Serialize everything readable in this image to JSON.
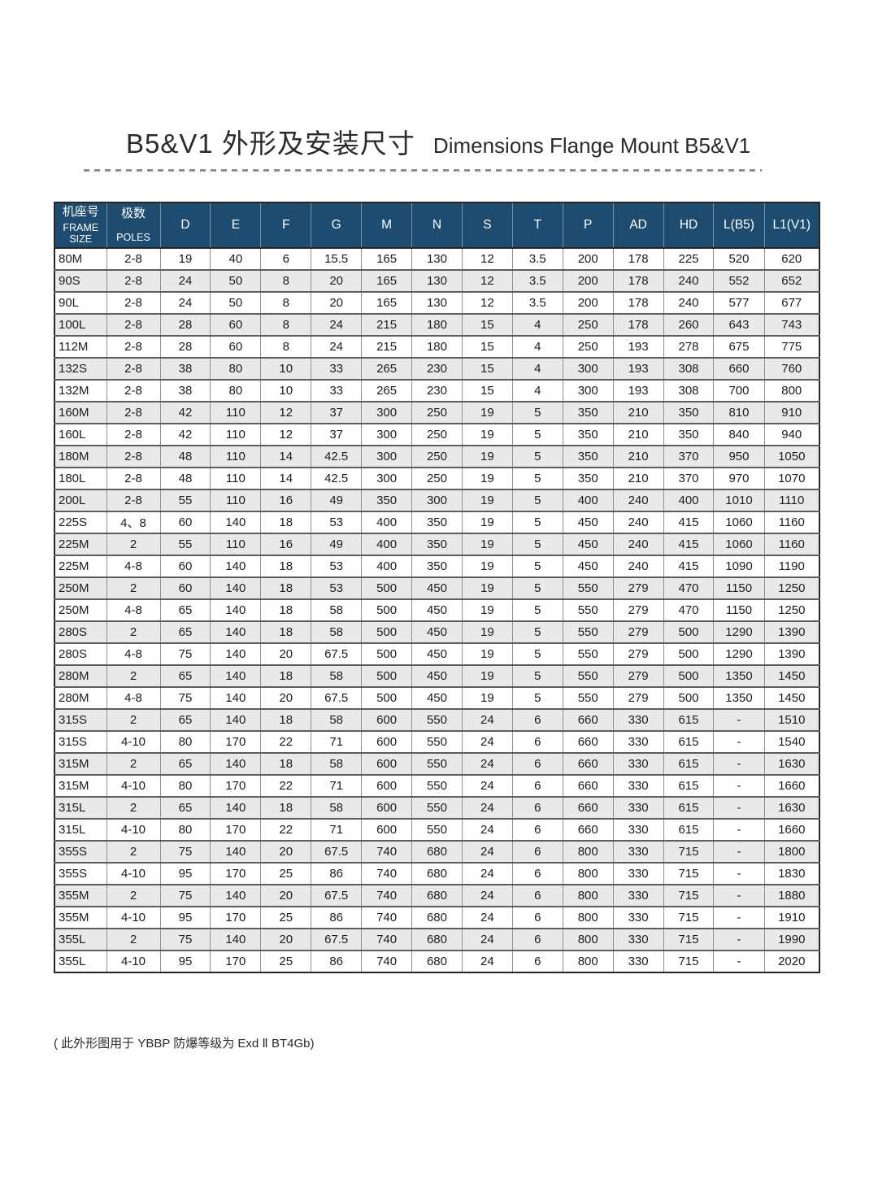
{
  "page": {
    "title_zh": "B5&V1 外形及安装尺寸",
    "title_en": "Dimensions Flange Mount B5&V1",
    "footnote": "( 此外形图用于 YBBP 防爆等级为 Exd Ⅱ BT4Gb)"
  },
  "colors": {
    "header_bg": "#1d4c70",
    "header_text": "#ffffff",
    "row_alt_bg": "#e9e9e9",
    "grid_vertical": "#8f8f8f",
    "grid_horizontal": "#5d5d5d",
    "outer_border": "#262626",
    "text": "#1c1c1c"
  },
  "table": {
    "columns": [
      {
        "zh": "机座号",
        "en": "FRAME SIZE"
      },
      {
        "zh": "极数",
        "en": "POLES"
      },
      {
        "label": "D"
      },
      {
        "label": "E"
      },
      {
        "label": "F"
      },
      {
        "label": "G"
      },
      {
        "label": "M"
      },
      {
        "label": "N"
      },
      {
        "label": "S"
      },
      {
        "label": "T"
      },
      {
        "label": "P"
      },
      {
        "label": "AD"
      },
      {
        "label": "HD"
      },
      {
        "label": "L(B5)"
      },
      {
        "label": "L1(V1)"
      }
    ],
    "rows": [
      [
        "80M",
        "2-8",
        "19",
        "40",
        "6",
        "15.5",
        "165",
        "130",
        "12",
        "3.5",
        "200",
        "178",
        "225",
        "520",
        "620"
      ],
      [
        "90S",
        "2-8",
        "24",
        "50",
        "8",
        "20",
        "165",
        "130",
        "12",
        "3.5",
        "200",
        "178",
        "240",
        "552",
        "652"
      ],
      [
        "90L",
        "2-8",
        "24",
        "50",
        "8",
        "20",
        "165",
        "130",
        "12",
        "3.5",
        "200",
        "178",
        "240",
        "577",
        "677"
      ],
      [
        "100L",
        "2-8",
        "28",
        "60",
        "8",
        "24",
        "215",
        "180",
        "15",
        "4",
        "250",
        "178",
        "260",
        "643",
        "743"
      ],
      [
        "112M",
        "2-8",
        "28",
        "60",
        "8",
        "24",
        "215",
        "180",
        "15",
        "4",
        "250",
        "193",
        "278",
        "675",
        "775"
      ],
      [
        "132S",
        "2-8",
        "38",
        "80",
        "10",
        "33",
        "265",
        "230",
        "15",
        "4",
        "300",
        "193",
        "308",
        "660",
        "760"
      ],
      [
        "132M",
        "2-8",
        "38",
        "80",
        "10",
        "33",
        "265",
        "230",
        "15",
        "4",
        "300",
        "193",
        "308",
        "700",
        "800"
      ],
      [
        "160M",
        "2-8",
        "42",
        "110",
        "12",
        "37",
        "300",
        "250",
        "19",
        "5",
        "350",
        "210",
        "350",
        "810",
        "910"
      ],
      [
        "160L",
        "2-8",
        "42",
        "110",
        "12",
        "37",
        "300",
        "250",
        "19",
        "5",
        "350",
        "210",
        "350",
        "840",
        "940"
      ],
      [
        "180M",
        "2-8",
        "48",
        "110",
        "14",
        "42.5",
        "300",
        "250",
        "19",
        "5",
        "350",
        "210",
        "370",
        "950",
        "1050"
      ],
      [
        "180L",
        "2-8",
        "48",
        "110",
        "14",
        "42.5",
        "300",
        "250",
        "19",
        "5",
        "350",
        "210",
        "370",
        "970",
        "1070"
      ],
      [
        "200L",
        "2-8",
        "55",
        "110",
        "16",
        "49",
        "350",
        "300",
        "19",
        "5",
        "400",
        "240",
        "400",
        "1010",
        "1110"
      ],
      [
        "225S",
        "4、8",
        "60",
        "140",
        "18",
        "53",
        "400",
        "350",
        "19",
        "5",
        "450",
        "240",
        "415",
        "1060",
        "1160"
      ],
      [
        "225M",
        "2",
        "55",
        "110",
        "16",
        "49",
        "400",
        "350",
        "19",
        "5",
        "450",
        "240",
        "415",
        "1060",
        "1160"
      ],
      [
        "225M",
        "4-8",
        "60",
        "140",
        "18",
        "53",
        "400",
        "350",
        "19",
        "5",
        "450",
        "240",
        "415",
        "1090",
        "1190"
      ],
      [
        "250M",
        "2",
        "60",
        "140",
        "18",
        "53",
        "500",
        "450",
        "19",
        "5",
        "550",
        "279",
        "470",
        "1150",
        "1250"
      ],
      [
        "250M",
        "4-8",
        "65",
        "140",
        "18",
        "58",
        "500",
        "450",
        "19",
        "5",
        "550",
        "279",
        "470",
        "1150",
        "1250"
      ],
      [
        "280S",
        "2",
        "65",
        "140",
        "18",
        "58",
        "500",
        "450",
        "19",
        "5",
        "550",
        "279",
        "500",
        "1290",
        "1390"
      ],
      [
        "280S",
        "4-8",
        "75",
        "140",
        "20",
        "67.5",
        "500",
        "450",
        "19",
        "5",
        "550",
        "279",
        "500",
        "1290",
        "1390"
      ],
      [
        "280M",
        "2",
        "65",
        "140",
        "18",
        "58",
        "500",
        "450",
        "19",
        "5",
        "550",
        "279",
        "500",
        "1350",
        "1450"
      ],
      [
        "280M",
        "4-8",
        "75",
        "140",
        "20",
        "67.5",
        "500",
        "450",
        "19",
        "5",
        "550",
        "279",
        "500",
        "1350",
        "1450"
      ],
      [
        "315S",
        "2",
        "65",
        "140",
        "18",
        "58",
        "600",
        "550",
        "24",
        "6",
        "660",
        "330",
        "615",
        "-",
        "1510"
      ],
      [
        "315S",
        "4-10",
        "80",
        "170",
        "22",
        "71",
        "600",
        "550",
        "24",
        "6",
        "660",
        "330",
        "615",
        "-",
        "1540"
      ],
      [
        "315M",
        "2",
        "65",
        "140",
        "18",
        "58",
        "600",
        "550",
        "24",
        "6",
        "660",
        "330",
        "615",
        "-",
        "1630"
      ],
      [
        "315M",
        "4-10",
        "80",
        "170",
        "22",
        "71",
        "600",
        "550",
        "24",
        "6",
        "660",
        "330",
        "615",
        "-",
        "1660"
      ],
      [
        "315L",
        "2",
        "65",
        "140",
        "18",
        "58",
        "600",
        "550",
        "24",
        "6",
        "660",
        "330",
        "615",
        "-",
        "1630"
      ],
      [
        "315L",
        "4-10",
        "80",
        "170",
        "22",
        "71",
        "600",
        "550",
        "24",
        "6",
        "660",
        "330",
        "615",
        "-",
        "1660"
      ],
      [
        "355S",
        "2",
        "75",
        "140",
        "20",
        "67.5",
        "740",
        "680",
        "24",
        "6",
        "800",
        "330",
        "715",
        "-",
        "1800"
      ],
      [
        "355S",
        "4-10",
        "95",
        "170",
        "25",
        "86",
        "740",
        "680",
        "24",
        "6",
        "800",
        "330",
        "715",
        "-",
        "1830"
      ],
      [
        "355M",
        "2",
        "75",
        "140",
        "20",
        "67.5",
        "740",
        "680",
        "24",
        "6",
        "800",
        "330",
        "715",
        "-",
        "1880"
      ],
      [
        "355M",
        "4-10",
        "95",
        "170",
        "25",
        "86",
        "740",
        "680",
        "24",
        "6",
        "800",
        "330",
        "715",
        "-",
        "1910"
      ],
      [
        "355L",
        "2",
        "75",
        "140",
        "20",
        "67.5",
        "740",
        "680",
        "24",
        "6",
        "800",
        "330",
        "715",
        "-",
        "1990"
      ],
      [
        "355L",
        "4-10",
        "95",
        "170",
        "25",
        "86",
        "740",
        "680",
        "24",
        "6",
        "800",
        "330",
        "715",
        "-",
        "2020"
      ]
    ]
  }
}
